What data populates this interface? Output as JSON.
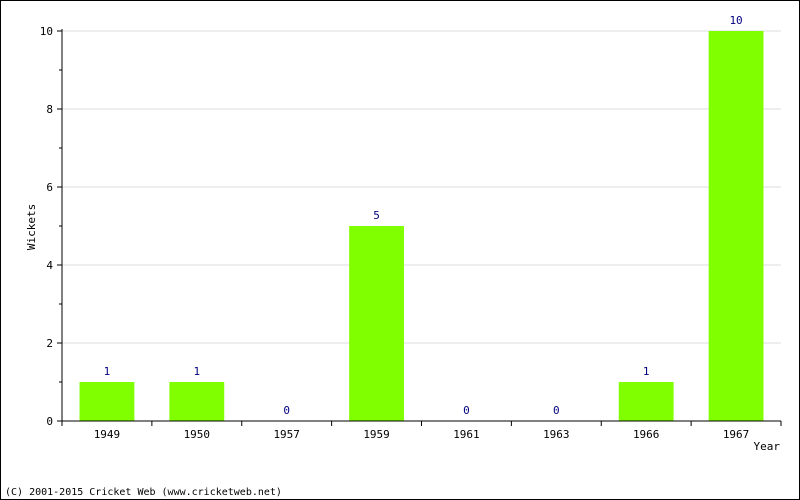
{
  "chart_data": {
    "type": "bar",
    "categories": [
      "1949",
      "1950",
      "1957",
      "1959",
      "1961",
      "1963",
      "1966",
      "1967"
    ],
    "values": [
      1,
      1,
      0,
      5,
      0,
      0,
      1,
      10
    ],
    "value_labels": [
      "1",
      "1",
      "0",
      "5",
      "0",
      "0",
      "1",
      "10"
    ],
    "xlabel": "Year",
    "ylabel": "Wickets",
    "ylim": [
      0,
      10
    ],
    "yticks": [
      "0",
      "2",
      "4",
      "6",
      "8",
      "10"
    ],
    "grid": true,
    "bar_color": "#80ff00",
    "value_label_color": "#000080"
  },
  "footer": {
    "copyright": "(C) 2001-2015 Cricket Web (www.cricketweb.net)"
  }
}
